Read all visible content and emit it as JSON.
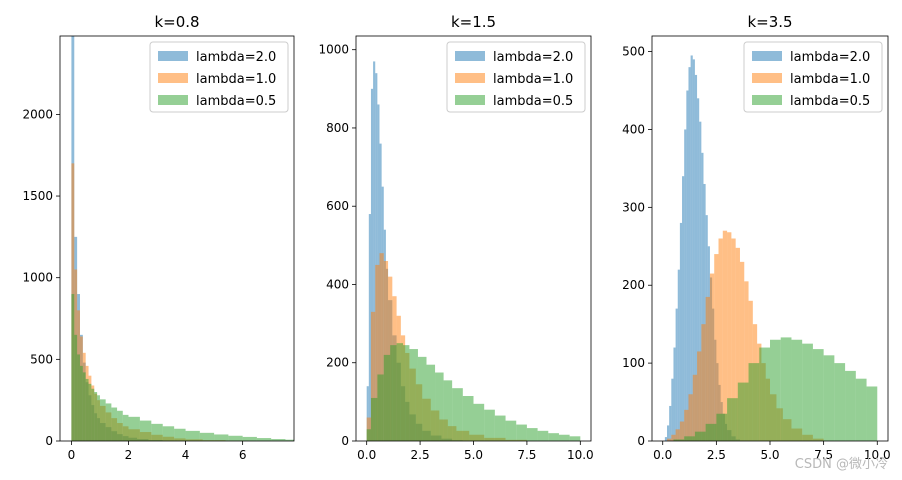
{
  "chart_data": [
    {
      "type": "histogram",
      "title": "k=0.8",
      "xlabel": "",
      "ylabel": "",
      "xlim": [
        -0.4,
        7.8
      ],
      "ylim": [
        0,
        2480
      ],
      "x_ticks": [
        0,
        2,
        4,
        6
      ],
      "x_tick_labels": [
        "0",
        "2",
        "4",
        "6"
      ],
      "y_ticks": [
        0,
        500,
        1000,
        1500,
        2000
      ],
      "y_tick_labels": [
        "0",
        "500",
        "1000",
        "1500",
        "2000"
      ],
      "legend_location": "top-right",
      "series": [
        {
          "name": "lambda=2.0",
          "color": "#1f77b4",
          "opacity": 0.5,
          "bins": [
            [
              0.0,
              2480
            ],
            [
              0.1,
              1250
            ],
            [
              0.2,
              900
            ],
            [
              0.3,
              650
            ],
            [
              0.4,
              480
            ],
            [
              0.5,
              360
            ],
            [
              0.6,
              280
            ],
            [
              0.7,
              220
            ],
            [
              0.8,
              170
            ],
            [
              0.9,
              140
            ],
            [
              1.0,
              110
            ],
            [
              1.2,
              85
            ],
            [
              1.4,
              60
            ],
            [
              1.6,
              42
            ],
            [
              1.8,
              30
            ],
            [
              2.0,
              20
            ],
            [
              2.3,
              12
            ],
            [
              2.7,
              6
            ],
            [
              3.2,
              2
            ]
          ]
        },
        {
          "name": "lambda=1.0",
          "color": "#ff7f0e",
          "opacity": 0.5,
          "bins": [
            [
              0.0,
              1700
            ],
            [
              0.1,
              1050
            ],
            [
              0.2,
              800
            ],
            [
              0.3,
              640
            ],
            [
              0.4,
              540
            ],
            [
              0.5,
              460
            ],
            [
              0.6,
              400
            ],
            [
              0.7,
              340
            ],
            [
              0.8,
              290
            ],
            [
              0.9,
              250
            ],
            [
              1.0,
              215
            ],
            [
              1.2,
              175
            ],
            [
              1.4,
              140
            ],
            [
              1.6,
              110
            ],
            [
              1.8,
              90
            ],
            [
              2.0,
              72
            ],
            [
              2.4,
              55
            ],
            [
              2.8,
              38
            ],
            [
              3.2,
              26
            ],
            [
              3.6,
              16
            ],
            [
              4.0,
              10
            ],
            [
              4.6,
              5
            ],
            [
              5.4,
              2
            ]
          ]
        },
        {
          "name": "lambda=0.5",
          "color": "#2ca02c",
          "opacity": 0.5,
          "bins": [
            [
              0.0,
              900
            ],
            [
              0.1,
              650
            ],
            [
              0.2,
              530
            ],
            [
              0.3,
              460
            ],
            [
              0.4,
              420
            ],
            [
              0.5,
              380
            ],
            [
              0.6,
              350
            ],
            [
              0.7,
              320
            ],
            [
              0.8,
              300
            ],
            [
              0.9,
              280
            ],
            [
              1.0,
              255
            ],
            [
              1.2,
              230
            ],
            [
              1.4,
              205
            ],
            [
              1.6,
              185
            ],
            [
              1.8,
              160
            ],
            [
              2.0,
              148
            ],
            [
              2.4,
              125
            ],
            [
              2.8,
              105
            ],
            [
              3.2,
              90
            ],
            [
              3.6,
              75
            ],
            [
              4.0,
              62
            ],
            [
              4.5,
              50
            ],
            [
              5.0,
              40
            ],
            [
              5.5,
              32
            ],
            [
              6.0,
              25
            ],
            [
              6.5,
              18
            ],
            [
              7.0,
              12
            ],
            [
              7.5,
              8
            ]
          ]
        }
      ]
    },
    {
      "type": "histogram",
      "title": "k=1.5",
      "xlabel": "",
      "ylabel": "",
      "xlim": [
        -0.5,
        10.5
      ],
      "ylim": [
        0,
        1035
      ],
      "x_ticks": [
        0.0,
        2.5,
        5.0,
        7.5,
        10.0
      ],
      "x_tick_labels": [
        "0.0",
        "2.5",
        "5.0",
        "7.5",
        "10.0"
      ],
      "y_ticks": [
        0,
        200,
        400,
        600,
        800,
        1000
      ],
      "y_tick_labels": [
        "0",
        "200",
        "400",
        "600",
        "800",
        "1000"
      ],
      "legend_location": "top-right",
      "series": [
        {
          "name": "lambda=2.0",
          "color": "#1f77b4",
          "opacity": 0.5,
          "bins": [
            [
              0.0,
              140
            ],
            [
              0.1,
              580
            ],
            [
              0.2,
              900
            ],
            [
              0.3,
              970
            ],
            [
              0.4,
              940
            ],
            [
              0.5,
              860
            ],
            [
              0.6,
              760
            ],
            [
              0.7,
              650
            ],
            [
              0.8,
              540
            ],
            [
              0.9,
              440
            ],
            [
              1.0,
              360
            ],
            [
              1.2,
              270
            ],
            [
              1.4,
              200
            ],
            [
              1.6,
              140
            ],
            [
              1.8,
              100
            ],
            [
              2.0,
              68
            ],
            [
              2.3,
              44
            ],
            [
              2.6,
              26
            ],
            [
              3.0,
              14
            ],
            [
              3.5,
              6
            ],
            [
              4.0,
              2
            ]
          ]
        },
        {
          "name": "lambda=1.0",
          "color": "#ff7f0e",
          "opacity": 0.5,
          "bins": [
            [
              0.0,
              60
            ],
            [
              0.2,
              330
            ],
            [
              0.4,
              450
            ],
            [
              0.6,
              480
            ],
            [
              0.8,
              460
            ],
            [
              1.0,
              420
            ],
            [
              1.2,
              370
            ],
            [
              1.4,
              320
            ],
            [
              1.6,
              270
            ],
            [
              1.8,
              225
            ],
            [
              2.0,
              185
            ],
            [
              2.3,
              145
            ],
            [
              2.6,
              108
            ],
            [
              3.0,
              78
            ],
            [
              3.4,
              55
            ],
            [
              3.8,
              38
            ],
            [
              4.2,
              26
            ],
            [
              4.8,
              16
            ],
            [
              5.5,
              8
            ],
            [
              6.5,
              3
            ]
          ]
        },
        {
          "name": "lambda=0.5",
          "color": "#2ca02c",
          "opacity": 0.5,
          "bins": [
            [
              0.0,
              30
            ],
            [
              0.2,
              110
            ],
            [
              0.5,
              170
            ],
            [
              0.8,
              220
            ],
            [
              1.1,
              245
            ],
            [
              1.4,
              250
            ],
            [
              1.7,
              245
            ],
            [
              2.0,
              235
            ],
            [
              2.4,
              215
            ],
            [
              2.8,
              195
            ],
            [
              3.2,
              175
            ],
            [
              3.6,
              155
            ],
            [
              4.0,
              135
            ],
            [
              4.5,
              115
            ],
            [
              5.0,
              95
            ],
            [
              5.5,
              80
            ],
            [
              6.0,
              65
            ],
            [
              6.5,
              52
            ],
            [
              7.0,
              42
            ],
            [
              7.5,
              33
            ],
            [
              8.0,
              26
            ],
            [
              8.5,
              20
            ],
            [
              9.0,
              16
            ],
            [
              9.5,
              12
            ]
          ]
        }
      ]
    },
    {
      "type": "histogram",
      "title": "k=3.5",
      "xlabel": "",
      "ylabel": "",
      "xlim": [
        -0.5,
        10.5
      ],
      "ylim": [
        0,
        520
      ],
      "x_ticks": [
        0.0,
        2.5,
        5.0,
        7.5,
        10.0
      ],
      "x_tick_labels": [
        "0.0",
        "2.5",
        "5.0",
        "7.5",
        "10.0"
      ],
      "y_ticks": [
        0,
        100,
        200,
        300,
        400,
        500
      ],
      "y_tick_labels": [
        "0",
        "100",
        "200",
        "300",
        "400",
        "500"
      ],
      "legend_location": "top-right",
      "series": [
        {
          "name": "lambda=2.0",
          "color": "#1f77b4",
          "opacity": 0.5,
          "bins": [
            [
              0.1,
              5
            ],
            [
              0.2,
              20
            ],
            [
              0.3,
              45
            ],
            [
              0.4,
              80
            ],
            [
              0.5,
              120
            ],
            [
              0.6,
              170
            ],
            [
              0.7,
              220
            ],
            [
              0.8,
              280
            ],
            [
              0.9,
              340
            ],
            [
              1.0,
              400
            ],
            [
              1.1,
              450
            ],
            [
              1.2,
              480
            ],
            [
              1.3,
              495
            ],
            [
              1.4,
              490
            ],
            [
              1.5,
              470
            ],
            [
              1.6,
              440
            ],
            [
              1.7,
              410
            ],
            [
              1.8,
              370
            ],
            [
              1.9,
              330
            ],
            [
              2.0,
              290
            ],
            [
              2.1,
              250
            ],
            [
              2.2,
              210
            ],
            [
              2.3,
              170
            ],
            [
              2.4,
              130
            ],
            [
              2.5,
              100
            ],
            [
              2.6,
              72
            ],
            [
              2.7,
              50
            ],
            [
              2.8,
              35
            ],
            [
              2.9,
              22
            ],
            [
              3.0,
              14
            ],
            [
              3.2,
              6
            ],
            [
              3.4,
              2
            ]
          ]
        },
        {
          "name": "lambda=1.0",
          "color": "#ff7f0e",
          "opacity": 0.5,
          "bins": [
            [
              0.2,
              3
            ],
            [
              0.4,
              8
            ],
            [
              0.6,
              15
            ],
            [
              0.8,
              25
            ],
            [
              1.0,
              40
            ],
            [
              1.2,
              60
            ],
            [
              1.4,
              85
            ],
            [
              1.6,
              115
            ],
            [
              1.8,
              150
            ],
            [
              2.0,
              185
            ],
            [
              2.2,
              215
            ],
            [
              2.4,
              240
            ],
            [
              2.6,
              260
            ],
            [
              2.8,
              270
            ],
            [
              3.0,
              268
            ],
            [
              3.2,
              260
            ],
            [
              3.4,
              248
            ],
            [
              3.6,
              230
            ],
            [
              3.8,
              205
            ],
            [
              4.0,
              180
            ],
            [
              4.2,
              150
            ],
            [
              4.4,
              125
            ],
            [
              4.6,
              100
            ],
            [
              4.8,
              80
            ],
            [
              5.0,
              60
            ],
            [
              5.3,
              42
            ],
            [
              5.6,
              28
            ],
            [
              6.0,
              16
            ],
            [
              6.5,
              8
            ],
            [
              7.0,
              3
            ]
          ]
        },
        {
          "name": "lambda=0.5",
          "color": "#2ca02c",
          "opacity": 0.5,
          "bins": [
            [
              0.5,
              2
            ],
            [
              1.0,
              6
            ],
            [
              1.5,
              12
            ],
            [
              2.0,
              22
            ],
            [
              2.5,
              35
            ],
            [
              3.0,
              55
            ],
            [
              3.5,
              75
            ],
            [
              4.0,
              100
            ],
            [
              4.5,
              120
            ],
            [
              5.0,
              130
            ],
            [
              5.5,
              133
            ],
            [
              6.0,
              130
            ],
            [
              6.5,
              125
            ],
            [
              7.0,
              118
            ],
            [
              7.5,
              110
            ],
            [
              8.0,
              100
            ],
            [
              8.5,
              90
            ],
            [
              9.0,
              80
            ],
            [
              9.5,
              70
            ]
          ]
        }
      ]
    }
  ],
  "watermark": "CSDN @微小冷"
}
